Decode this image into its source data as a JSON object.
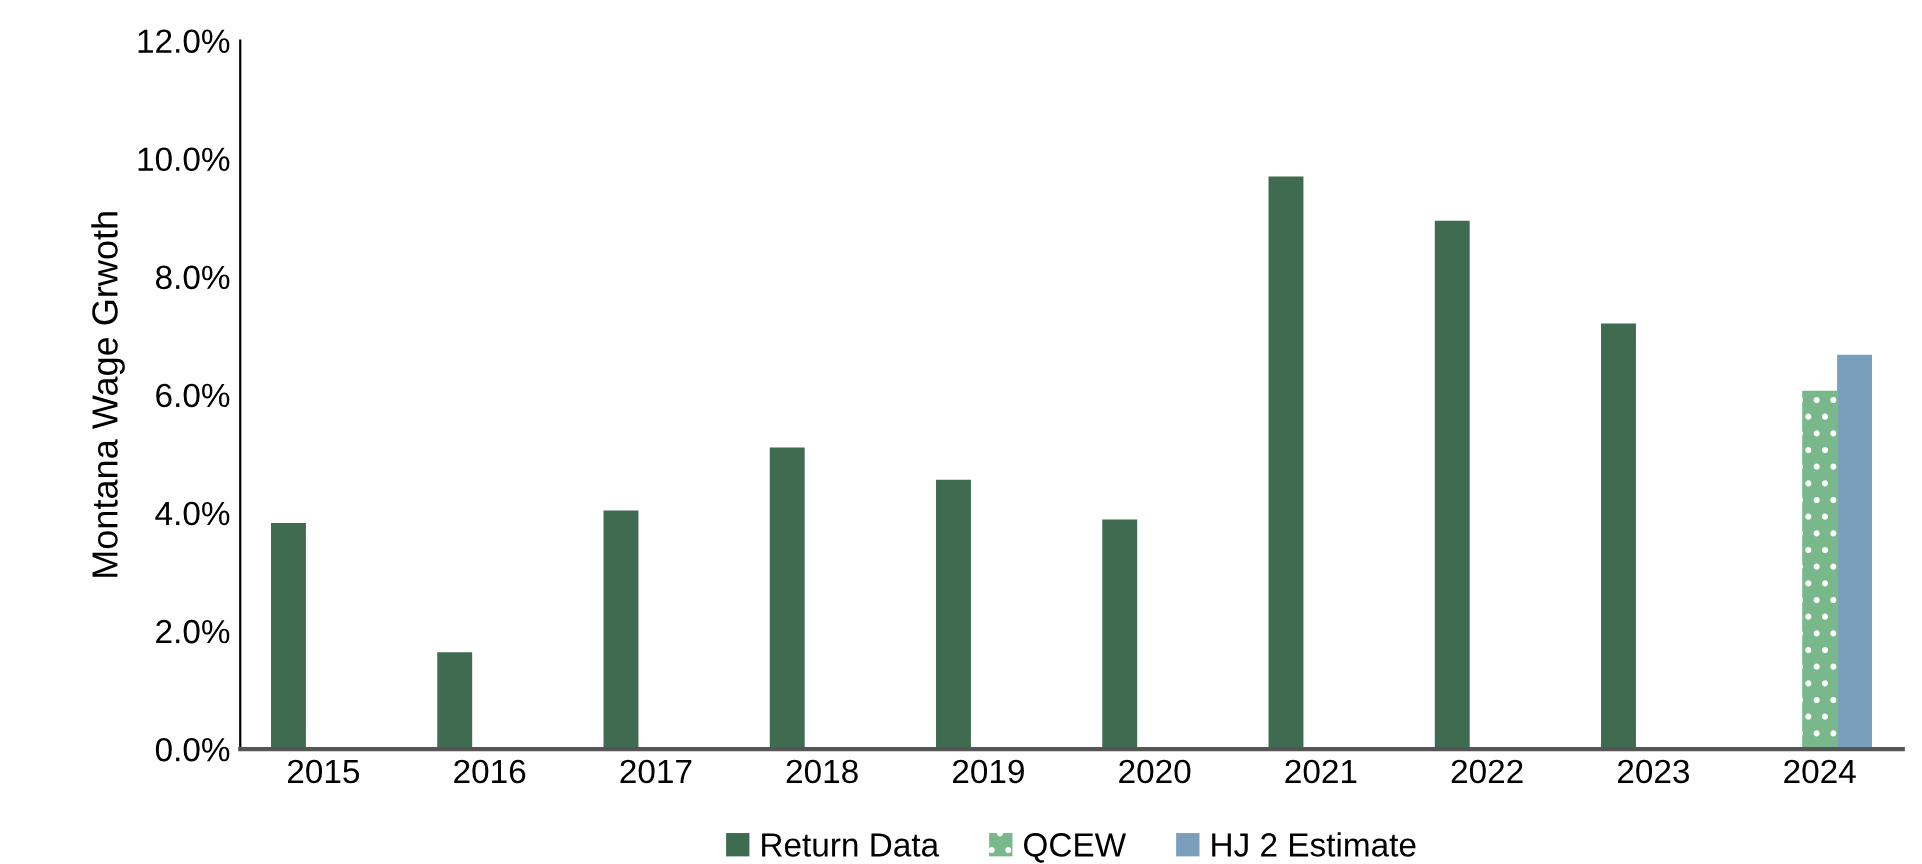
{
  "chart_data": {
    "type": "bar",
    "ylabel": "Montana Wage Grwoth",
    "categories": [
      "2015",
      "2016",
      "2017",
      "2018",
      "2019",
      "2020",
      "2021",
      "2022",
      "2023",
      "2024"
    ],
    "series": [
      {
        "name": "Return Data",
        "color": "#3f6b50",
        "values": [
          3.83,
          1.64,
          4.04,
          5.11,
          4.56,
          3.89,
          9.7,
          8.95,
          7.21,
          null
        ]
      },
      {
        "name": "QCEW",
        "color": "#79b88a",
        "values": [
          null,
          null,
          null,
          null,
          null,
          null,
          null,
          null,
          null,
          6.07
        ]
      },
      {
        "name": "HJ 2 Estimate",
        "color": "#7a9fbd",
        "values": [
          null,
          null,
          null,
          null,
          null,
          null,
          null,
          null,
          null,
          6.68
        ]
      }
    ],
    "ylim": [
      0,
      12
    ],
    "yticks": [
      {
        "value": 0,
        "label": "0.0%"
      },
      {
        "value": 2,
        "label": "2.0%"
      },
      {
        "value": 4,
        "label": "4.0%"
      },
      {
        "value": 6,
        "label": "6.0%"
      },
      {
        "value": 8,
        "label": "8.0%"
      },
      {
        "value": 10,
        "label": "10.0%"
      },
      {
        "value": 12,
        "label": "12.0%"
      }
    ],
    "grid": false,
    "legend": "bottom"
  }
}
